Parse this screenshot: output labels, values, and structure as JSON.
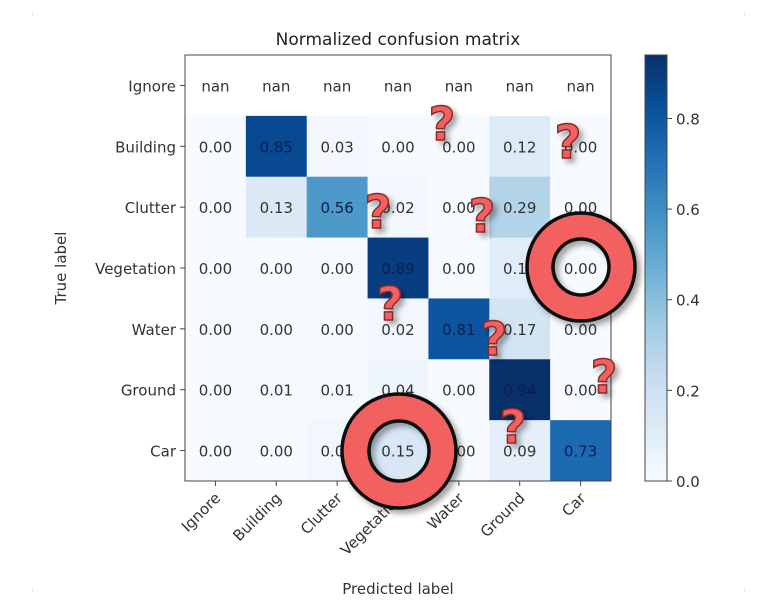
{
  "chart_data": {
    "type": "heatmap",
    "title": "Normalized confusion matrix",
    "xlabel": "Predicted label",
    "ylabel": "True label",
    "x_categories": [
      "Ignore",
      "Building",
      "Clutter",
      "Vegetation",
      "Water",
      "Ground",
      "Car"
    ],
    "y_categories": [
      "Ignore",
      "Building",
      "Clutter",
      "Vegetation",
      "Water",
      "Ground",
      "Car"
    ],
    "values": [
      [
        null,
        null,
        null,
        null,
        null,
        null,
        null
      ],
      [
        0.0,
        0.85,
        0.03,
        0.0,
        0.0,
        0.12,
        0.0
      ],
      [
        0.0,
        0.13,
        0.56,
        0.02,
        0.0,
        0.29,
        0.0
      ],
      [
        0.0,
        0.0,
        0.0,
        0.89,
        0.0,
        0.11,
        0.0
      ],
      [
        0.0,
        0.0,
        0.0,
        0.02,
        0.81,
        0.17,
        0.0
      ],
      [
        0.0,
        0.01,
        0.01,
        0.04,
        0.0,
        0.94,
        0.0
      ],
      [
        0.0,
        0.0,
        0.03,
        0.15,
        0.0,
        0.09,
        0.73
      ]
    ],
    "nan_label": "nan",
    "value_format": "2-decimal",
    "colormap": "Blues",
    "color_range": [
      0.0,
      0.94
    ],
    "colorbar": {
      "ticks": [
        0.0,
        0.2,
        0.4,
        0.6,
        0.8
      ],
      "tick_labels": [
        "0.0",
        "0.2",
        "0.4",
        "0.6",
        "0.8"
      ]
    },
    "grid": false,
    "annotations": {
      "circles": [
        {
          "row": 3,
          "col": 6,
          "note": "ring highlight"
        },
        {
          "row": 6,
          "col": 3,
          "note": "ring highlight"
        }
      ],
      "question_marks": 8,
      "sticker_color": "#f26161"
    }
  }
}
